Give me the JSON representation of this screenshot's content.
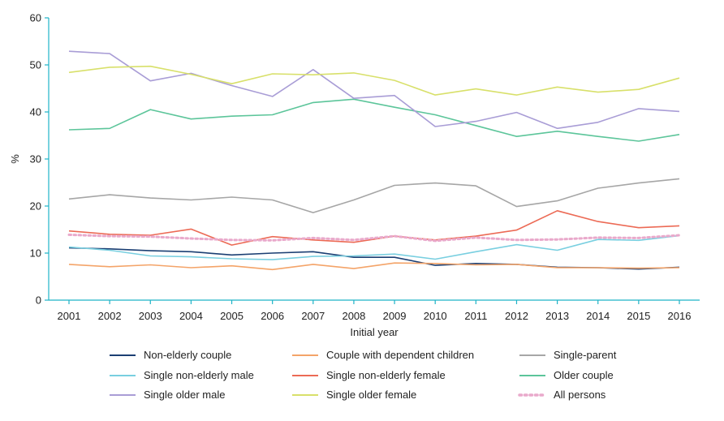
{
  "chart_data": {
    "type": "line",
    "title": "",
    "xlabel": "Initial year",
    "ylabel": "%",
    "ylim": [
      0,
      60
    ],
    "yticks": [
      0,
      10,
      20,
      30,
      40,
      50,
      60
    ],
    "x": [
      "2001",
      "2002",
      "2003",
      "2004",
      "2005",
      "2006",
      "2007",
      "2008",
      "2009",
      "2010",
      "2011",
      "2012",
      "2013",
      "2014",
      "2015",
      "2016"
    ],
    "grid": false,
    "legend_position": "bottom",
    "series": [
      {
        "name": "Non-elderly couple",
        "color": "#1b3f73",
        "style": "solid",
        "values": [
          11.1,
          10.9,
          10.5,
          10.3,
          9.6,
          10.0,
          10.3,
          9.1,
          9.1,
          7.4,
          7.8,
          7.6,
          7.0,
          6.9,
          6.6,
          7.0
        ]
      },
      {
        "name": "Couple with dependent children",
        "color": "#f4a469",
        "style": "solid",
        "values": [
          7.6,
          7.1,
          7.5,
          6.9,
          7.3,
          6.5,
          7.6,
          6.7,
          7.9,
          7.8,
          7.5,
          7.6,
          6.9,
          6.9,
          6.8,
          6.9
        ]
      },
      {
        "name": "Single-parent",
        "color": "#a6a6a6",
        "style": "solid",
        "values": [
          21.5,
          22.4,
          21.7,
          21.3,
          21.9,
          21.3,
          18.6,
          21.3,
          24.4,
          24.9,
          24.3,
          19.9,
          21.1,
          23.8,
          24.9,
          25.8
        ]
      },
      {
        "name": "Single non-elderly male",
        "color": "#79cfe0",
        "style": "solid",
        "values": [
          11.3,
          10.6,
          9.4,
          9.2,
          8.8,
          8.6,
          9.3,
          9.4,
          9.8,
          8.7,
          10.3,
          11.8,
          10.6,
          12.9,
          12.7,
          13.7
        ]
      },
      {
        "name": "Single non-elderly female",
        "color": "#ec6a55",
        "style": "solid",
        "values": [
          14.7,
          14.0,
          13.8,
          15.1,
          11.7,
          13.5,
          12.8,
          12.3,
          13.6,
          12.8,
          13.6,
          14.9,
          19.0,
          16.7,
          15.4,
          15.8
        ]
      },
      {
        "name": "Older couple",
        "color": "#5cc59a",
        "style": "solid",
        "values": [
          36.2,
          36.5,
          40.5,
          38.5,
          39.1,
          39.4,
          42.0,
          42.7,
          41.0,
          39.4,
          37.1,
          34.8,
          35.9,
          34.8,
          33.8,
          35.2
        ]
      },
      {
        "name": "Single older male",
        "color": "#a99dd6",
        "style": "solid",
        "values": [
          52.9,
          52.4,
          46.6,
          48.2,
          45.6,
          43.3,
          49.0,
          42.9,
          43.5,
          36.9,
          38.0,
          39.9,
          36.5,
          37.8,
          40.7,
          40.1
        ]
      },
      {
        "name": "Single older female",
        "color": "#d8e06a",
        "style": "solid",
        "values": [
          48.4,
          49.5,
          49.7,
          48.0,
          46.0,
          48.1,
          47.9,
          48.3,
          46.7,
          43.6,
          44.9,
          43.6,
          45.3,
          44.2,
          44.8,
          47.2
        ]
      },
      {
        "name": "All persons",
        "color": "#e9a9cb",
        "style": "dotted",
        "values": [
          13.9,
          13.6,
          13.5,
          13.1,
          12.8,
          12.7,
          13.2,
          12.8,
          13.6,
          12.6,
          13.3,
          12.8,
          12.9,
          13.3,
          13.2,
          13.8
        ]
      }
    ]
  }
}
